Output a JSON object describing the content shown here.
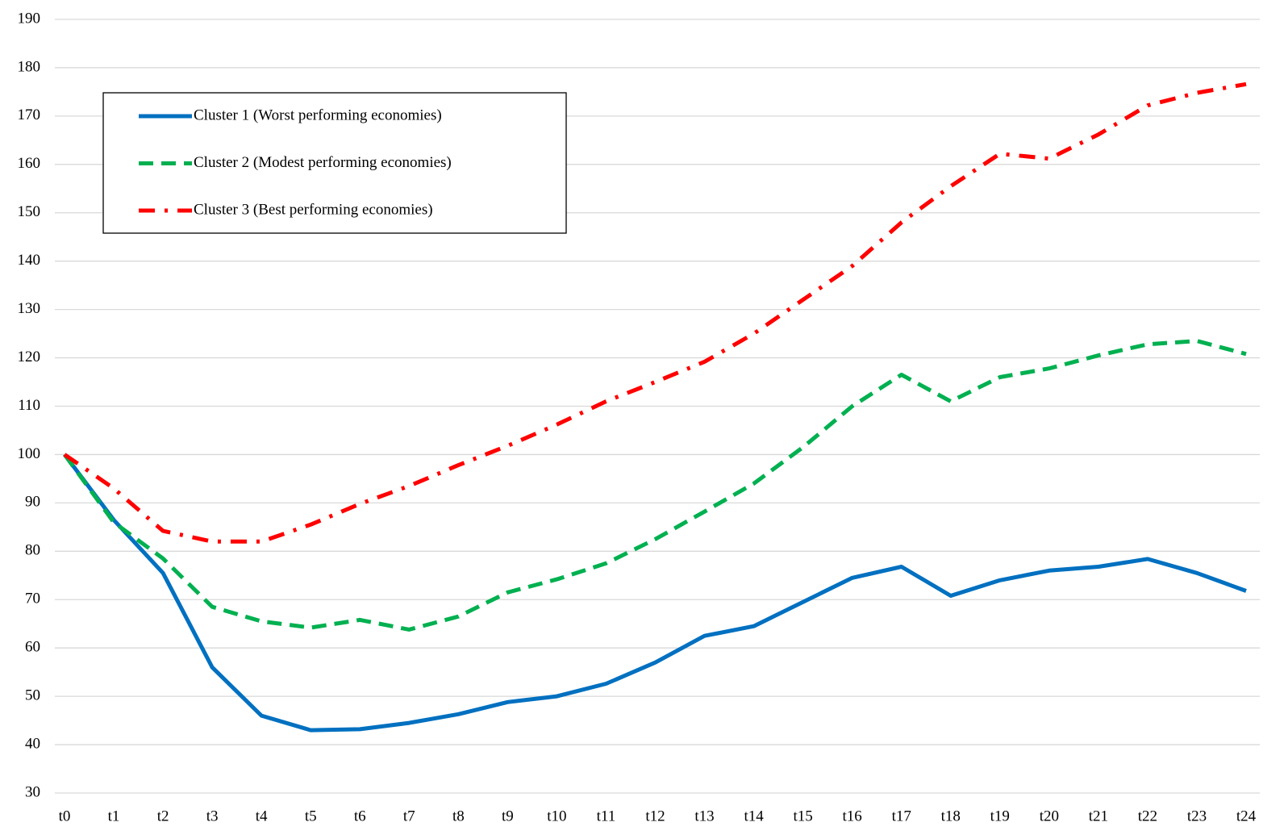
{
  "chart_data": {
    "type": "line",
    "categories": [
      "t0",
      "t1",
      "t2",
      "t3",
      "t4",
      "t5",
      "t6",
      "t7",
      "t8",
      "t9",
      "t10",
      "t11",
      "t12",
      "t13",
      "t14",
      "t15",
      "t16",
      "t17",
      "t18",
      "t19",
      "t20",
      "t21",
      "t22",
      "t23",
      "t24"
    ],
    "series": [
      {
        "name": "Cluster 1 (Worst performing economies)",
        "color": "#0070c0",
        "dash": "solid",
        "values": [
          100,
          86.5,
          75.5,
          56,
          46,
          43,
          43.2,
          44.5,
          46.3,
          48.8,
          50,
          52.6,
          57,
          62.5,
          64.5,
          69.5,
          74.5,
          76.8,
          70.8,
          74,
          76,
          76.8,
          78.4,
          75.5,
          71.8
        ]
      },
      {
        "name": "Cluster 2 (Modest performing economies)",
        "color": "#00b050",
        "dash": "dashed",
        "values": [
          100,
          86,
          78.5,
          68.5,
          65.5,
          64.2,
          65.8,
          63.8,
          66.5,
          71.5,
          74.2,
          77.5,
          82.5,
          88.2,
          94,
          101.5,
          110,
          116.5,
          111,
          116,
          117.8,
          120.5,
          122.8,
          123.5,
          120.8
        ]
      },
      {
        "name": "Cluster 3 (Best performing economies)",
        "color": "#ff0000",
        "dash": "dashdot",
        "values": [
          100,
          93,
          84.2,
          82,
          82,
          85.5,
          89.8,
          93.5,
          97.8,
          101.8,
          106.2,
          111,
          115,
          119.2,
          125,
          132,
          139,
          148,
          155.5,
          162.2,
          161.2,
          166.2,
          172.2,
          174.8,
          176.6
        ]
      }
    ],
    "ylim": [
      30,
      190
    ],
    "yticks": [
      30,
      40,
      50,
      60,
      70,
      80,
      90,
      100,
      110,
      120,
      130,
      140,
      150,
      160,
      170,
      180,
      190
    ],
    "grid": true,
    "legend": "upper left"
  }
}
